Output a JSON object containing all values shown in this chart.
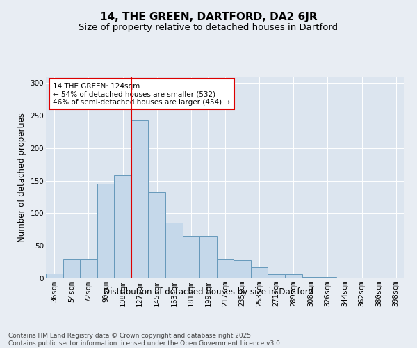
{
  "title": "14, THE GREEN, DARTFORD, DA2 6JR",
  "subtitle": "Size of property relative to detached houses in Dartford",
  "xlabel": "Distribution of detached houses by size in Dartford",
  "ylabel": "Number of detached properties",
  "categories": [
    "36sqm",
    "54sqm",
    "72sqm",
    "90sqm",
    "108sqm",
    "127sqm",
    "145sqm",
    "163sqm",
    "181sqm",
    "199sqm",
    "217sqm",
    "235sqm",
    "253sqm",
    "271sqm",
    "289sqm",
    "308sqm",
    "326sqm",
    "344sqm",
    "362sqm",
    "380sqm",
    "398sqm"
  ],
  "values": [
    7,
    30,
    30,
    145,
    158,
    243,
    133,
    85,
    65,
    65,
    30,
    28,
    17,
    6,
    6,
    2,
    2,
    1,
    1,
    0,
    1
  ],
  "bar_color": "#c5d8ea",
  "bar_edge_color": "#6699bb",
  "vline_color": "#dd0000",
  "annotation_text": "14 THE GREEN: 124sqm\n← 54% of detached houses are smaller (532)\n46% of semi-detached houses are larger (454) →",
  "annotation_box_facecolor": "#ffffff",
  "annotation_box_edgecolor": "#dd0000",
  "bg_color": "#e8edf3",
  "plot_bg_color": "#dce5ef",
  "footer": "Contains HM Land Registry data © Crown copyright and database right 2025.\nContains public sector information licensed under the Open Government Licence v3.0.",
  "ylim": [
    0,
    310
  ],
  "yticks": [
    0,
    50,
    100,
    150,
    200,
    250,
    300
  ],
  "title_fontsize": 11,
  "subtitle_fontsize": 9.5,
  "axis_label_fontsize": 8.5,
  "tick_fontsize": 7.5,
  "footer_fontsize": 6.5,
  "annotation_fontsize": 7.5
}
